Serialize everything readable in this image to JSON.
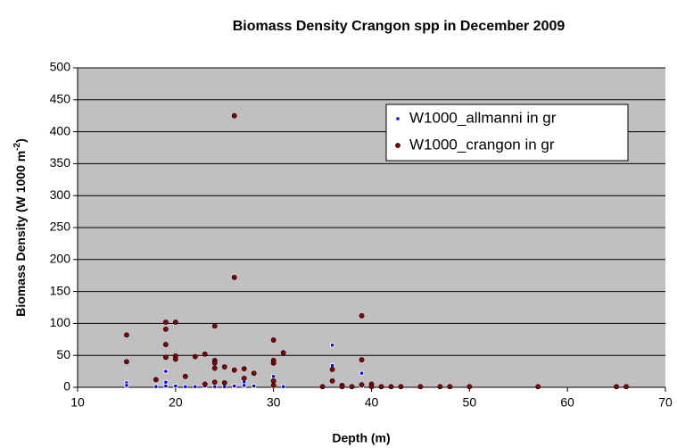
{
  "chart_data": {
    "type": "scatter",
    "title": "Biomass Density Crangon spp in December 2009",
    "x_label": "Depth  (m)",
    "y_label": "Biomass Density  (W 1000 m",
    "y_label_superscript": "-2",
    "y_label_end": ")",
    "xlim": [
      10,
      70
    ],
    "xticks": [
      10,
      20,
      30,
      40,
      50,
      60,
      70
    ],
    "ylim": [
      0,
      500
    ],
    "yticks": [
      0,
      50,
      100,
      150,
      200,
      250,
      300,
      350,
      400,
      450,
      500
    ],
    "grid": true,
    "background": "#c0c0c0",
    "legend": "upper right",
    "series": [
      {
        "name": "W1000_allmanni in gr",
        "color": "#0000ff",
        "marker": "square",
        "x": [
          15,
          15,
          18,
          19,
          19,
          19,
          20,
          21,
          22,
          23,
          24,
          24,
          25,
          26,
          27,
          27,
          28,
          30,
          30,
          31,
          36,
          36,
          39,
          39,
          40,
          42
        ],
        "values": [
          7,
          3,
          1,
          25,
          8,
          2,
          2,
          1,
          1,
          2,
          3,
          1,
          1,
          2,
          8,
          3,
          2,
          17,
          2,
          1,
          66,
          34,
          22,
          2,
          1,
          1
        ]
      },
      {
        "name": "W1000_crangon in gr",
        "color": "#8b0000",
        "marker": "circle",
        "x": [
          15,
          15,
          18,
          19,
          19,
          19,
          19,
          20,
          20,
          20,
          21,
          22,
          23,
          23,
          24,
          24,
          24,
          24,
          24,
          25,
          25,
          26,
          26,
          26,
          27,
          27,
          28,
          30,
          30,
          30,
          30,
          30,
          31,
          35,
          36,
          36,
          37,
          37,
          38,
          39,
          39,
          39,
          40,
          40,
          41,
          42,
          43,
          45,
          47,
          48,
          50,
          57,
          65,
          66
        ],
        "values": [
          82,
          40,
          12,
          102,
          91,
          67,
          47,
          102,
          49,
          44,
          17,
          48,
          52,
          5,
          96,
          42,
          38,
          30,
          8,
          32,
          7,
          425,
          172,
          27,
          29,
          14,
          22,
          74,
          42,
          38,
          10,
          3,
          54,
          1,
          28,
          10,
          3,
          1,
          1,
          112,
          43,
          4,
          5,
          1,
          1,
          1,
          1,
          1,
          1,
          1,
          1,
          1,
          1,
          1
        ]
      }
    ]
  }
}
